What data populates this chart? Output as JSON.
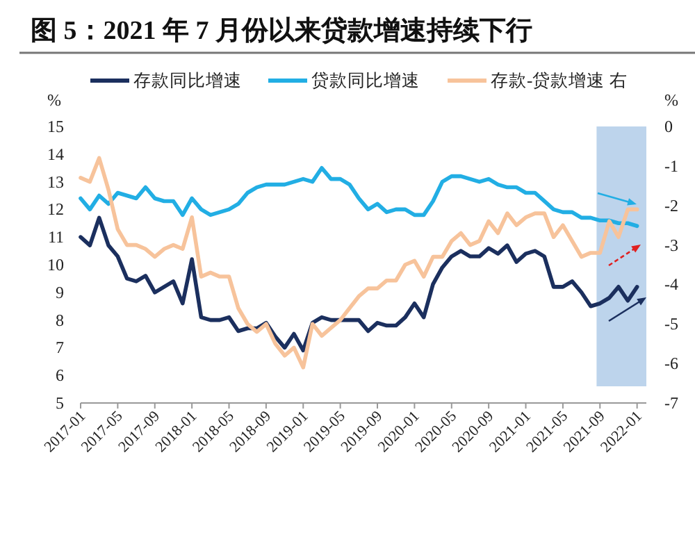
{
  "chart_data": {
    "type": "line",
    "title": "图 5：2021 年 7 月份以来贷款增速持续下行",
    "ylabel": "%",
    "y2label": "%",
    "x": [
      "2017-01",
      "2017-02",
      "2017-03",
      "2017-04",
      "2017-05",
      "2017-06",
      "2017-07",
      "2017-08",
      "2017-09",
      "2017-10",
      "2017-11",
      "2017-12",
      "2018-01",
      "2018-02",
      "2018-03",
      "2018-04",
      "2018-05",
      "2018-06",
      "2018-07",
      "2018-08",
      "2018-09",
      "2018-10",
      "2018-11",
      "2018-12",
      "2019-01",
      "2019-02",
      "2019-03",
      "2019-04",
      "2019-05",
      "2019-06",
      "2019-07",
      "2019-08",
      "2019-09",
      "2019-10",
      "2019-11",
      "2019-12",
      "2020-01",
      "2020-02",
      "2020-03",
      "2020-04",
      "2020-05",
      "2020-06",
      "2020-07",
      "2020-08",
      "2020-09",
      "2020-10",
      "2020-11",
      "2020-12",
      "2021-01",
      "2021-02",
      "2021-03",
      "2021-04",
      "2021-05",
      "2021-06",
      "2021-07",
      "2021-08",
      "2021-09",
      "2021-10",
      "2021-11",
      "2021-12",
      "2022-01"
    ],
    "series": [
      {
        "name": "存款同比增速",
        "color": "#1b2f5e",
        "values": [
          11.0,
          10.7,
          11.7,
          10.7,
          10.3,
          9.5,
          9.4,
          9.6,
          9.0,
          9.2,
          9.4,
          8.6,
          10.2,
          8.1,
          8.0,
          8.0,
          8.1,
          7.6,
          7.7,
          7.7,
          7.9,
          7.4,
          7.0,
          7.5,
          6.9,
          7.9,
          8.1,
          8.0,
          8.0,
          8.0,
          8.0,
          7.6,
          7.9,
          7.8,
          7.8,
          8.1,
          8.6,
          8.1,
          9.3,
          9.9,
          10.3,
          10.5,
          10.3,
          10.3,
          10.6,
          10.4,
          10.7,
          10.1,
          10.4,
          10.5,
          10.3,
          9.2,
          9.2,
          9.4,
          9.0,
          8.5,
          8.6,
          8.8,
          9.2,
          8.7,
          9.2
        ]
      },
      {
        "name": "贷款同比增速",
        "color": "#22aee4",
        "values": [
          12.4,
          12.0,
          12.5,
          12.2,
          12.6,
          12.5,
          12.4,
          12.8,
          12.4,
          12.3,
          12.3,
          11.8,
          12.4,
          12.0,
          11.8,
          11.9,
          12.0,
          12.2,
          12.6,
          12.8,
          12.9,
          12.9,
          12.9,
          13.0,
          13.1,
          13.0,
          13.5,
          13.1,
          13.1,
          12.9,
          12.4,
          12.0,
          12.2,
          11.9,
          12.0,
          12.0,
          11.8,
          11.8,
          12.3,
          13.0,
          13.2,
          13.2,
          13.1,
          13.0,
          13.1,
          12.9,
          12.8,
          12.8,
          12.6,
          12.6,
          12.3,
          12.0,
          11.9,
          11.9,
          11.7,
          11.7,
          11.6,
          11.6,
          11.5,
          11.5,
          11.4
        ]
      },
      {
        "name": "存款-贷款增速 右",
        "color": "#f7c39b",
        "axis": "y2",
        "values": [
          -1.3,
          -1.4,
          -0.8,
          -1.6,
          -2.6,
          -3.0,
          -3.0,
          -3.1,
          -3.3,
          -3.1,
          -3.0,
          -3.1,
          -2.3,
          -3.8,
          -3.7,
          -3.8,
          -3.8,
          -4.6,
          -5.0,
          -5.2,
          -5.0,
          -5.5,
          -5.8,
          -5.6,
          -6.1,
          -5.0,
          -5.3,
          -5.1,
          -4.9,
          -4.6,
          -4.3,
          -4.1,
          -4.1,
          -3.9,
          -3.9,
          -3.5,
          -3.4,
          -3.8,
          -3.3,
          -3.3,
          -2.9,
          -2.7,
          -3.0,
          -2.9,
          -2.4,
          -2.7,
          -2.2,
          -2.5,
          -2.3,
          -2.2,
          -2.2,
          -2.8,
          -2.5,
          -2.9,
          -3.3,
          -3.2,
          -3.2,
          -2.4,
          -2.8,
          -2.1,
          -2.1
        ]
      }
    ],
    "xlim": [
      "2017-01",
      "2022-02"
    ],
    "xticks": [
      "2017-01",
      "2017-05",
      "2017-09",
      "2018-01",
      "2018-05",
      "2018-09",
      "2019-01",
      "2019-05",
      "2019-09",
      "2020-01",
      "2020-05",
      "2020-09",
      "2021-01",
      "2021-05",
      "2021-09",
      "2022-01"
    ],
    "ylim": [
      5,
      15
    ],
    "yticks": [
      5,
      6,
      7,
      8,
      9,
      10,
      11,
      12,
      13,
      14,
      15
    ],
    "y2lim": [
      -7,
      0
    ],
    "y2ticks": [
      -7,
      -6,
      -5,
      -4,
      -3,
      -2,
      -1,
      0
    ],
    "bands": [
      {
        "axis": "x",
        "from": "2021-08-20",
        "to": "2022-02",
        "color": "#bdd4ec"
      }
    ],
    "legend": "top",
    "grid": false,
    "marker": "none",
    "line_style": "solid"
  }
}
